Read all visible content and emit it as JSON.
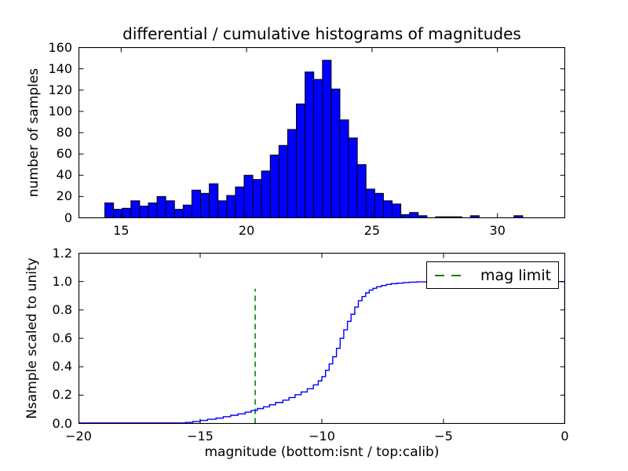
{
  "figure": {
    "title": "differential / cumulative histograms of magnitudes",
    "xlabel": "magnitude (bottom:isnt / top:calib)",
    "bg_color": "#ffffff",
    "axes_edge_color": "#000000"
  },
  "chart_data": [
    {
      "type": "bar",
      "name": "differential-histogram-top",
      "ylabel": "number of samples",
      "xlim": [
        13.3,
        32.7
      ],
      "ylim": [
        0,
        160
      ],
      "xticks": [
        15,
        20,
        25,
        30
      ],
      "xtick_labels": [
        "15",
        "20",
        "25",
        "30"
      ],
      "yticks": [
        0,
        20,
        40,
        60,
        80,
        100,
        120,
        140,
        160
      ],
      "ytick_labels": [
        "0",
        "20",
        "40",
        "60",
        "80",
        "100",
        "120",
        "140",
        "160"
      ],
      "bin_start": 14.35,
      "bin_width": 0.347,
      "values": [
        14,
        8,
        9,
        16,
        11,
        14,
        20,
        16,
        8,
        12,
        26,
        23,
        32,
        16,
        21,
        29,
        40,
        36,
        44,
        59,
        68,
        83,
        107,
        137,
        130,
        148,
        121,
        92,
        75,
        50,
        27,
        23,
        16,
        13,
        3,
        5,
        2,
        0,
        1,
        1,
        1,
        0,
        2,
        0,
        0,
        0,
        0,
        2
      ],
      "bar_fill": "#0000ff",
      "bar_edge": "#000000",
      "grid": false
    },
    {
      "type": "line",
      "name": "cumulative-histogram-bottom",
      "ylabel": "Nsample scaled to unity",
      "xlim": [
        -20,
        0
      ],
      "ylim": [
        0,
        1.2
      ],
      "xticks": [
        -20,
        -15,
        -10,
        -5,
        0
      ],
      "xtick_labels": [
        "−20",
        "−15",
        "−10",
        "−5",
        "0"
      ],
      "yticks": [
        0,
        0.2,
        0.4,
        0.6,
        0.8,
        1.0,
        1.2
      ],
      "ytick_labels": [
        "0.0",
        "0.2",
        "0.4",
        "0.6",
        "0.8",
        "1.0",
        "1.2"
      ],
      "line_color": "#0000ff",
      "step_points": [
        [
          -20,
          0.004
        ],
        [
          -15.6,
          0.008
        ],
        [
          -15.3,
          0.014
        ],
        [
          -15.0,
          0.022
        ],
        [
          -14.7,
          0.03
        ],
        [
          -14.35,
          0.038
        ],
        [
          -14.05,
          0.048
        ],
        [
          -13.75,
          0.058
        ],
        [
          -13.45,
          0.068
        ],
        [
          -13.15,
          0.08
        ],
        [
          -12.9,
          0.092
        ],
        [
          -12.65,
          0.105
        ],
        [
          -12.4,
          0.118
        ],
        [
          -12.15,
          0.132
        ],
        [
          -11.9,
          0.148
        ],
        [
          -11.6,
          0.165
        ],
        [
          -11.35,
          0.183
        ],
        [
          -11.1,
          0.203
        ],
        [
          -10.85,
          0.222
        ],
        [
          -10.6,
          0.245
        ],
        [
          -10.35,
          0.272
        ],
        [
          -10.15,
          0.3
        ],
        [
          -10.0,
          0.33
        ],
        [
          -9.85,
          0.375
        ],
        [
          -9.7,
          0.42
        ],
        [
          -9.55,
          0.47
        ],
        [
          -9.4,
          0.53
        ],
        [
          -9.25,
          0.6
        ],
        [
          -9.1,
          0.66
        ],
        [
          -8.95,
          0.72
        ],
        [
          -8.8,
          0.77
        ],
        [
          -8.65,
          0.82
        ],
        [
          -8.5,
          0.865
        ],
        [
          -8.35,
          0.895
        ],
        [
          -8.2,
          0.92
        ],
        [
          -8.05,
          0.94
        ],
        [
          -7.9,
          0.952
        ],
        [
          -7.75,
          0.963
        ],
        [
          -7.55,
          0.972
        ],
        [
          -7.35,
          0.98
        ],
        [
          -7.15,
          0.985
        ],
        [
          -6.9,
          0.989
        ],
        [
          -6.65,
          0.993
        ],
        [
          -6.4,
          0.996
        ],
        [
          -6.1,
          0.998
        ],
        [
          -5.7,
          1.0
        ],
        [
          0,
          1.0
        ]
      ],
      "end_drop_to_zero_at_x": 0,
      "mag_limit_line": {
        "x": -12.74,
        "y_from": 0,
        "y_to": 0.95,
        "color": "#008000",
        "style": "dashed"
      },
      "legend": {
        "position": "upper right",
        "entries": [
          {
            "label": "mag limit",
            "line_color": "#008000",
            "line_style": "dashed"
          }
        ]
      },
      "grid": false
    }
  ]
}
